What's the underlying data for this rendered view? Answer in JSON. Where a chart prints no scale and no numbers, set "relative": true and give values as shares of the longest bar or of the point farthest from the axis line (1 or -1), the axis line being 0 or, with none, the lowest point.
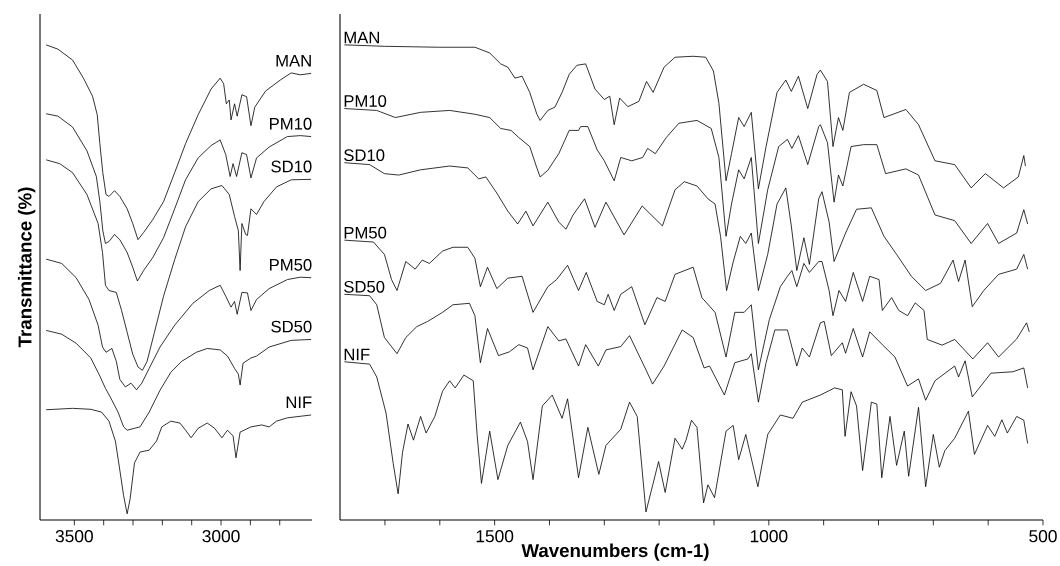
{
  "chart_data": [
    {
      "type": "line",
      "relative": true,
      "ylabel": "Transmittance (%)",
      "color": "#000000",
      "xlim": [
        3617,
        2690
      ],
      "xticks": [
        3500,
        {
          "value": 3400,
          "label": null
        },
        {
          "value": 3300,
          "label": null
        },
        {
          "value": 3200,
          "label": null
        },
        {
          "value": 3100,
          "label": null
        },
        3000,
        {
          "value": 2900,
          "label": null
        },
        {
          "value": 2800,
          "label": null
        }
      ],
      "series": [
        {
          "name": "MAN",
          "x": [
            3596,
            3556,
            3506,
            3469,
            3438,
            3422,
            3413,
            3403,
            3392,
            3382,
            3363,
            3345,
            3320,
            3301,
            3283,
            3264,
            3233,
            3196,
            3158,
            3121,
            3078,
            3034,
            3003,
            2991,
            2982,
            2972,
            2966,
            2954,
            2945,
            2929,
            2913,
            2898,
            2885,
            2848,
            2798,
            2761,
            2730,
            2693
          ],
          "values": [
            1.0,
            0.991,
            0.968,
            0.93,
            0.892,
            0.853,
            0.792,
            0.731,
            0.685,
            0.681,
            0.693,
            0.681,
            0.655,
            0.624,
            0.59,
            0.605,
            0.632,
            0.67,
            0.731,
            0.792,
            0.853,
            0.907,
            0.93,
            0.918,
            0.876,
            0.884,
            0.842,
            0.876,
            0.85,
            0.895,
            0.891,
            0.83,
            0.869,
            0.903,
            0.926,
            0.941,
            0.937,
            0.94
          ]
        },
        {
          "name": "PM10",
          "x": [
            3596,
            3556,
            3506,
            3457,
            3425,
            3413,
            3403,
            3394,
            3382,
            3363,
            3345,
            3320,
            3301,
            3285,
            3264,
            3233,
            3196,
            3158,
            3121,
            3078,
            3034,
            3003,
            2984,
            2969,
            2959,
            2947,
            2929,
            2913,
            2898,
            2879,
            2836,
            2774,
            2730,
            2693
          ],
          "values": [
            0.855,
            0.85,
            0.827,
            0.777,
            0.723,
            0.67,
            0.609,
            0.582,
            0.586,
            0.601,
            0.59,
            0.563,
            0.532,
            0.503,
            0.525,
            0.552,
            0.594,
            0.655,
            0.716,
            0.762,
            0.788,
            0.8,
            0.769,
            0.723,
            0.75,
            0.723,
            0.773,
            0.769,
            0.72,
            0.762,
            0.785,
            0.807,
            0.809,
            0.807
          ]
        },
        {
          "name": "SD10",
          "x": [
            3596,
            3550,
            3506,
            3457,
            3419,
            3404,
            3394,
            3382,
            3357,
            3339,
            3320,
            3301,
            3283,
            3268,
            3252,
            3227,
            3196,
            3158,
            3121,
            3078,
            3034,
            2997,
            2972,
            2954,
            2941,
            2935,
            2929,
            2916,
            2910,
            2898,
            2879,
            2854,
            2811,
            2761,
            2693
          ],
          "values": [
            0.758,
            0.75,
            0.731,
            0.685,
            0.624,
            0.563,
            0.494,
            0.483,
            0.479,
            0.441,
            0.395,
            0.349,
            0.322,
            0.315,
            0.334,
            0.395,
            0.471,
            0.548,
            0.617,
            0.67,
            0.697,
            0.704,
            0.685,
            0.639,
            0.609,
            0.525,
            0.624,
            0.601,
            0.599,
            0.655,
            0.643,
            0.67,
            0.701,
            0.716,
            0.717
          ]
        },
        {
          "name": "PM50",
          "x": [
            3596,
            3543,
            3494,
            3450,
            3419,
            3404,
            3392,
            3372,
            3357,
            3345,
            3326,
            3307,
            3288,
            3270,
            3245,
            3208,
            3158,
            3096,
            3040,
            3003,
            2984,
            2966,
            2954,
            2945,
            2929,
            2910,
            2898,
            2879,
            2836,
            2774,
            2730,
            2693
          ],
          "values": [
            0.549,
            0.54,
            0.51,
            0.464,
            0.41,
            0.364,
            0.353,
            0.361,
            0.334,
            0.296,
            0.28,
            0.288,
            0.274,
            0.288,
            0.319,
            0.364,
            0.41,
            0.456,
            0.483,
            0.494,
            0.471,
            0.448,
            0.46,
            0.433,
            0.479,
            0.478,
            0.441,
            0.464,
            0.487,
            0.506,
            0.511,
            0.51
          ]
        },
        {
          "name": "SD50",
          "x": [
            3596,
            3543,
            3494,
            3444,
            3413,
            3394,
            3376,
            3351,
            3332,
            3320,
            3295,
            3276,
            3245,
            3208,
            3171,
            3134,
            3084,
            3047,
            3003,
            2978,
            2954,
            2941,
            2935,
            2925,
            2898,
            2879,
            2836,
            2761,
            2693
          ],
          "values": [
            0.399,
            0.391,
            0.372,
            0.341,
            0.303,
            0.277,
            0.257,
            0.227,
            0.196,
            0.189,
            0.193,
            0.196,
            0.227,
            0.273,
            0.311,
            0.334,
            0.353,
            0.361,
            0.358,
            0.345,
            0.319,
            0.307,
            0.284,
            0.33,
            0.341,
            0.345,
            0.364,
            0.378,
            0.38
          ]
        },
        {
          "name": "NIF",
          "x": [
            3596,
            3506,
            3444,
            3407,
            3382,
            3360,
            3345,
            3332,
            3320,
            3310,
            3295,
            3276,
            3245,
            3220,
            3202,
            3171,
            3140,
            3121,
            3102,
            3078,
            3047,
            3022,
            2997,
            2978,
            2959,
            2949,
            2935,
            2898,
            2861,
            2836,
            2811,
            2774,
            2693
          ],
          "values": [
            0.232,
            0.235,
            0.233,
            0.227,
            0.208,
            0.166,
            0.105,
            0.051,
            0.013,
            0.044,
            0.12,
            0.143,
            0.147,
            0.166,
            0.196,
            0.208,
            0.204,
            0.189,
            0.173,
            0.193,
            0.204,
            0.193,
            0.173,
            0.189,
            0.177,
            0.131,
            0.185,
            0.196,
            0.2,
            0.196,
            0.208,
            0.215,
            0.221
          ]
        }
      ]
    },
    {
      "type": "line",
      "relative": true,
      "xlabel": "Wavenumbers (cm-1)",
      "color": "#000000",
      "xlim": [
        1782,
        500
      ],
      "xticks": [
        {
          "value": 1700,
          "label": null
        },
        {
          "value": 1600,
          "label": null
        },
        1500,
        {
          "value": 1400,
          "label": null
        },
        {
          "value": 1300,
          "label": null
        },
        {
          "value": 1200,
          "label": null
        },
        {
          "value": 1100,
          "label": null
        },
        1000,
        {
          "value": 900,
          "label": null
        },
        {
          "value": 800,
          "label": null
        },
        {
          "value": 700,
          "label": null
        },
        {
          "value": 600,
          "label": null
        },
        500
      ],
      "series": [
        {
          "name": "MAN",
          "x": [
            1774,
            1701,
            1602,
            1536,
            1509,
            1489,
            1476,
            1463,
            1450,
            1436,
            1423,
            1417,
            1403,
            1390,
            1377,
            1364,
            1350,
            1334,
            1317,
            1300,
            1290,
            1282,
            1272,
            1257,
            1237,
            1223,
            1211,
            1191,
            1171,
            1138,
            1115,
            1101,
            1091,
            1078,
            1068,
            1055,
            1045,
            1032,
            1019,
            1005,
            985,
            969,
            959,
            946,
            929,
            912,
            906,
            893,
            883,
            873,
            865,
            853,
            827,
            803,
            790,
            750,
            727,
            697,
            661,
            631,
            605,
            572,
            545,
            535,
            532
          ],
          "values": [
            1.0,
            0.997,
            0.995,
            0.995,
            0.983,
            0.96,
            0.953,
            0.93,
            0.934,
            0.9,
            0.854,
            0.841,
            0.862,
            0.869,
            0.9,
            0.938,
            0.957,
            0.96,
            0.907,
            0.885,
            0.892,
            0.832,
            0.888,
            0.87,
            0.881,
            0.923,
            0.9,
            0.953,
            0.974,
            0.976,
            0.974,
            0.945,
            0.877,
            0.714,
            0.771,
            0.847,
            0.828,
            0.858,
            0.697,
            0.786,
            0.9,
            0.926,
            0.902,
            0.934,
            0.866,
            0.938,
            0.947,
            0.923,
            0.786,
            0.847,
            0.82,
            0.9,
            0.917,
            0.904,
            0.847,
            0.864,
            0.832,
            0.756,
            0.748,
            0.699,
            0.729,
            0.699,
            0.722,
            0.767,
            0.745
          ]
        },
        {
          "name": "PM10",
          "x": [
            1774,
            1715,
            1681,
            1635,
            1582,
            1536,
            1509,
            1489,
            1470,
            1456,
            1436,
            1423,
            1417,
            1403,
            1383,
            1364,
            1347,
            1343,
            1330,
            1313,
            1300,
            1282,
            1270,
            1250,
            1230,
            1221,
            1207,
            1187,
            1164,
            1131,
            1105,
            1091,
            1078,
            1068,
            1055,
            1045,
            1032,
            1019,
            1002,
            982,
            966,
            958,
            946,
            929,
            909,
            906,
            893,
            881,
            873,
            865,
            850,
            827,
            803,
            787,
            750,
            727,
            697,
            661,
            631,
            601,
            581,
            548,
            535,
            528
          ],
          "values": [
            0.866,
            0.862,
            0.847,
            0.858,
            0.862,
            0.854,
            0.847,
            0.824,
            0.82,
            0.805,
            0.786,
            0.741,
            0.722,
            0.736,
            0.771,
            0.82,
            0.82,
            0.828,
            0.828,
            0.779,
            0.756,
            0.714,
            0.763,
            0.756,
            0.763,
            0.782,
            0.771,
            0.805,
            0.835,
            0.841,
            0.824,
            0.763,
            0.597,
            0.665,
            0.737,
            0.718,
            0.763,
            0.582,
            0.695,
            0.786,
            0.801,
            0.782,
            0.809,
            0.748,
            0.828,
            0.832,
            0.794,
            0.669,
            0.726,
            0.703,
            0.786,
            0.79,
            0.79,
            0.729,
            0.739,
            0.726,
            0.642,
            0.63,
            0.582,
            0.624,
            0.582,
            0.604,
            0.653,
            0.623
          ]
        },
        {
          "name": "SD10",
          "x": [
            1774,
            1728,
            1701,
            1675,
            1635,
            1582,
            1549,
            1529,
            1516,
            1496,
            1476,
            1458,
            1443,
            1430,
            1403,
            1383,
            1370,
            1357,
            1336,
            1317,
            1297,
            1264,
            1231,
            1194,
            1171,
            1154,
            1131,
            1111,
            1098,
            1088,
            1077,
            1065,
            1052,
            1042,
            1032,
            1019,
            1002,
            985,
            969,
            959,
            949,
            936,
            926,
            909,
            903,
            890,
            881,
            860,
            840,
            813,
            790,
            767,
            740,
            714,
            687,
            664,
            654,
            642,
            629,
            608,
            581,
            548,
            535,
            528
          ],
          "values": [
            0.752,
            0.748,
            0.729,
            0.726,
            0.737,
            0.745,
            0.741,
            0.718,
            0.722,
            0.688,
            0.65,
            0.623,
            0.65,
            0.619,
            0.669,
            0.627,
            0.612,
            0.642,
            0.676,
            0.616,
            0.669,
            0.6,
            0.661,
            0.619,
            0.695,
            0.712,
            0.703,
            0.676,
            0.665,
            0.597,
            0.483,
            0.543,
            0.597,
            0.582,
            0.604,
            0.483,
            0.559,
            0.665,
            0.699,
            0.619,
            0.525,
            0.594,
            0.538,
            0.676,
            0.691,
            0.627,
            0.544,
            0.604,
            0.654,
            0.657,
            0.597,
            0.559,
            0.513,
            0.483,
            0.498,
            0.547,
            0.502,
            0.547,
            0.449,
            0.483,
            0.517,
            0.528,
            0.559,
            0.528
          ]
        },
        {
          "name": "PM50",
          "x": [
            1774,
            1721,
            1701,
            1688,
            1678,
            1662,
            1645,
            1632,
            1619,
            1595,
            1576,
            1549,
            1536,
            1526,
            1513,
            1496,
            1476,
            1450,
            1430,
            1403,
            1387,
            1367,
            1347,
            1333,
            1313,
            1300,
            1293,
            1282,
            1270,
            1250,
            1226,
            1204,
            1189,
            1171,
            1138,
            1122,
            1098,
            1078,
            1062,
            1045,
            1032,
            1019,
            999,
            979,
            966,
            958,
            949,
            936,
            926,
            909,
            903,
            890,
            883,
            872,
            860,
            846,
            829,
            816,
            799,
            793,
            776,
            763,
            747,
            733,
            717,
            711,
            684,
            661,
            628,
            601,
            581,
            548,
            530,
            525
          ],
          "values": [
            0.589,
            0.585,
            0.559,
            0.506,
            0.483,
            0.544,
            0.528,
            0.547,
            0.54,
            0.566,
            0.574,
            0.574,
            0.551,
            0.491,
            0.532,
            0.487,
            0.509,
            0.513,
            0.437,
            0.491,
            0.506,
            0.536,
            0.483,
            0.521,
            0.46,
            0.453,
            0.475,
            0.441,
            0.475,
            0.491,
            0.411,
            0.468,
            0.46,
            0.517,
            0.532,
            0.468,
            0.437,
            0.343,
            0.437,
            0.437,
            0.453,
            0.316,
            0.422,
            0.491,
            0.513,
            0.525,
            0.491,
            0.54,
            0.521,
            0.544,
            0.544,
            0.483,
            0.43,
            0.483,
            0.46,
            0.521,
            0.46,
            0.513,
            0.506,
            0.441,
            0.468,
            0.441,
            0.43,
            0.457,
            0.441,
            0.38,
            0.368,
            0.38,
            0.339,
            0.373,
            0.343,
            0.381,
            0.415,
            0.396
          ]
        },
        {
          "name": "SD50",
          "x": [
            1774,
            1728,
            1715,
            1701,
            1678,
            1662,
            1642,
            1622,
            1595,
            1576,
            1546,
            1536,
            1526,
            1513,
            1493,
            1473,
            1456,
            1440,
            1430,
            1403,
            1383,
            1370,
            1347,
            1334,
            1311,
            1297,
            1270,
            1254,
            1224,
            1212,
            1191,
            1158,
            1138,
            1118,
            1108,
            1081,
            1062,
            1038,
            1032,
            1019,
            1005,
            989,
            966,
            949,
            939,
            926,
            906,
            899,
            886,
            866,
            860,
            846,
            829,
            816,
            793,
            770,
            747,
            727,
            714,
            697,
            661,
            654,
            642,
            629,
            595,
            555,
            535,
            528
          ],
          "values": [
            0.475,
            0.472,
            0.453,
            0.384,
            0.35,
            0.384,
            0.407,
            0.418,
            0.437,
            0.453,
            0.456,
            0.43,
            0.331,
            0.403,
            0.346,
            0.354,
            0.369,
            0.362,
            0.316,
            0.407,
            0.377,
            0.381,
            0.324,
            0.369,
            0.324,
            0.358,
            0.365,
            0.388,
            0.316,
            0.286,
            0.324,
            0.4,
            0.384,
            0.32,
            0.324,
            0.263,
            0.331,
            0.339,
            0.35,
            0.248,
            0.331,
            0.4,
            0.4,
            0.324,
            0.362,
            0.343,
            0.415,
            0.418,
            0.346,
            0.373,
            0.351,
            0.403,
            0.343,
            0.396,
            0.369,
            0.343,
            0.282,
            0.297,
            0.252,
            0.293,
            0.324,
            0.301,
            0.335,
            0.259,
            0.309,
            0.312,
            0.32,
            0.278
          ]
        },
        {
          "name": "NIF",
          "x": [
            1774,
            1728,
            1715,
            1698,
            1685,
            1676,
            1668,
            1658,
            1648,
            1635,
            1625,
            1609,
            1595,
            1582,
            1572,
            1556,
            1539,
            1532,
            1524,
            1509,
            1494,
            1476,
            1453,
            1440,
            1430,
            1413,
            1395,
            1377,
            1367,
            1347,
            1330,
            1310,
            1297,
            1270,
            1254,
            1240,
            1224,
            1201,
            1189,
            1171,
            1158,
            1151,
            1141,
            1131,
            1119,
            1111,
            1099,
            1078,
            1065,
            1055,
            1042,
            1020,
            1002,
            979,
            956,
            939,
            906,
            880,
            866,
            861,
            850,
            840,
            829,
            813,
            803,
            794,
            779,
            767,
            753,
            745,
            727,
            714,
            700,
            689,
            679,
            661,
            636,
            625,
            601,
            588,
            575,
            565,
            548,
            535,
            528
          ],
          "values": [
            0.333,
            0.328,
            0.301,
            0.225,
            0.119,
            0.055,
            0.142,
            0.202,
            0.168,
            0.218,
            0.183,
            0.218,
            0.271,
            0.293,
            0.278,
            0.305,
            0.293,
            0.18,
            0.077,
            0.187,
            0.085,
            0.157,
            0.206,
            0.165,
            0.085,
            0.24,
            0.263,
            0.214,
            0.255,
            0.089,
            0.195,
            0.096,
            0.157,
            0.191,
            0.248,
            0.218,
            0.017,
            0.123,
            0.058,
            0.172,
            0.149,
            0.168,
            0.21,
            0.195,
            0.036,
            0.074,
            0.047,
            0.187,
            0.199,
            0.127,
            0.18,
            0.07,
            0.18,
            0.221,
            0.214,
            0.248,
            0.263,
            0.278,
            0.274,
            0.176,
            0.27,
            0.24,
            0.104,
            0.248,
            0.244,
            0.089,
            0.218,
            0.115,
            0.187,
            0.092,
            0.237,
            0.07,
            0.18,
            0.111,
            0.146,
            0.172,
            0.229,
            0.138,
            0.199,
            0.176,
            0.211,
            0.183,
            0.218,
            0.21,
            0.161
          ]
        }
      ]
    }
  ]
}
